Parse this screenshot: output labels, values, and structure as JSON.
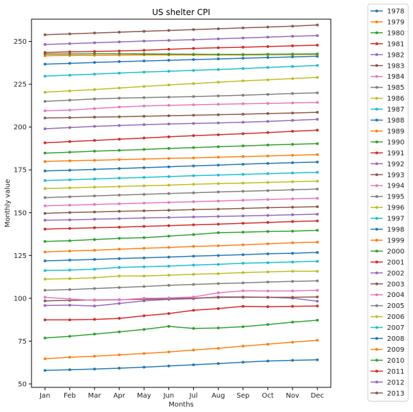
{
  "chart_data": {
    "type": "line",
    "title": "US shelter CPI",
    "xlabel": "Months",
    "ylabel": "Monthly value",
    "categories": [
      "Jan",
      "Feb",
      "Mar",
      "Apr",
      "May",
      "Jun",
      "Jul",
      "Aug",
      "Sep",
      "Oct",
      "Nov",
      "Dec"
    ],
    "ylim": [
      48,
      263
    ],
    "yticks": [
      50,
      75,
      100,
      125,
      150,
      175,
      200,
      225,
      250
    ],
    "grid": false,
    "legend": "outside right",
    "series": [
      {
        "name": "1978",
        "color": "#1f77b4",
        "values": [
          57.9,
          58.3,
          58.7,
          59.2,
          59.8,
          60.5,
          61.2,
          61.9,
          62.7,
          63.4,
          63.8,
          64.1
        ]
      },
      {
        "name": "1979",
        "color": "#ff7f0e",
        "values": [
          64.7,
          65.6,
          66.2,
          67.0,
          67.8,
          68.7,
          69.8,
          70.8,
          72.1,
          73.2,
          74.4,
          75.5
        ]
      },
      {
        "name": "1980",
        "color": "#2ca02c",
        "values": [
          76.8,
          77.8,
          79.1,
          80.4,
          81.8,
          83.6,
          82.4,
          82.7,
          83.4,
          84.7,
          86.1,
          87.2
        ]
      },
      {
        "name": "1981",
        "color": "#d62728",
        "values": [
          87.4,
          87.4,
          87.7,
          88.3,
          89.8,
          91.1,
          93.0,
          94.0,
          95.3,
          95.1,
          95.3,
          95.5
        ]
      },
      {
        "name": "1982",
        "color": "#9467bd",
        "values": [
          95.8,
          96.0,
          95.5,
          97.0,
          98.5,
          99.4,
          99.8,
          100.8,
          100.8,
          100.6,
          100.1,
          98.3
        ]
      },
      {
        "name": "1983",
        "color": "#8c564b",
        "values": [
          98.5,
          98.8,
          99.0,
          99.2,
          99.4,
          99.7,
          100.1,
          100.5,
          100.6,
          100.6,
          100.6,
          100.8
        ]
      },
      {
        "name": "1984",
        "color": "#e377c2",
        "values": [
          100.6,
          99.6,
          98.8,
          99.1,
          100.0,
          100.2,
          100.8,
          103.2,
          104.4,
          104.3,
          104.3,
          104.7
        ]
      },
      {
        "name": "1985",
        "color": "#7f7f7f",
        "values": [
          104.7,
          105.1,
          105.7,
          106.3,
          106.9,
          107.6,
          108.1,
          108.6,
          109.0,
          109.5,
          109.9,
          110.2
        ]
      },
      {
        "name": "1986",
        "color": "#bcbd22",
        "values": [
          111.2,
          111.5,
          112.0,
          113.0,
          113.0,
          113.5,
          114.0,
          114.4,
          115.0,
          115.4,
          115.8,
          115.8
        ]
      },
      {
        "name": "1987",
        "color": "#17becf",
        "values": [
          116.2,
          116.5,
          117.0,
          118.0,
          118.4,
          118.8,
          119.4,
          119.8,
          120.5,
          120.8,
          121.2,
          121.6
        ]
      },
      {
        "name": "1988",
        "color": "#1f77b4",
        "values": [
          121.9,
          122.3,
          122.7,
          123.2,
          123.6,
          124.1,
          124.6,
          125.0,
          125.5,
          126.0,
          126.3,
          126.8
        ]
      },
      {
        "name": "1989",
        "color": "#ff7f0e",
        "values": [
          127.1,
          127.6,
          128.1,
          128.7,
          129.2,
          129.7,
          130.3,
          130.7,
          131.2,
          131.8,
          132.4,
          132.8
        ]
      },
      {
        "name": "1990",
        "color": "#2ca02c",
        "values": [
          133.2,
          133.6,
          134.3,
          135.0,
          135.4,
          136.3,
          137.2,
          138.3,
          138.6,
          139.0,
          139.2,
          139.7
        ]
      },
      {
        "name": "1991",
        "color": "#d62728",
        "values": [
          140.4,
          140.8,
          141.2,
          141.5,
          142.0,
          142.4,
          142.9,
          143.3,
          143.8,
          144.3,
          144.8,
          145.2
        ]
      },
      {
        "name": "1992",
        "color": "#9467bd",
        "values": [
          145.6,
          145.8,
          146.2,
          146.5,
          146.9,
          147.2,
          147.5,
          147.8,
          148.1,
          148.4,
          148.8,
          149.1
        ]
      },
      {
        "name": "1993",
        "color": "#8c564b",
        "values": [
          149.6,
          150.1,
          150.4,
          150.8,
          151.1,
          151.4,
          151.8,
          152.1,
          152.5,
          152.9,
          153.2,
          153.5
        ]
      },
      {
        "name": "1994",
        "color": "#e377c2",
        "values": [
          154.0,
          154.4,
          154.8,
          155.2,
          155.6,
          156.0,
          156.4,
          156.8,
          157.3,
          157.7,
          158.1,
          158.4
        ]
      },
      {
        "name": "1995",
        "color": "#7f7f7f",
        "values": [
          158.8,
          159.3,
          159.8,
          160.3,
          160.7,
          161.2,
          161.6,
          162.1,
          162.5,
          162.9,
          163.4,
          163.8
        ]
      },
      {
        "name": "1996",
        "color": "#bcbd22",
        "values": [
          164.1,
          164.5,
          164.9,
          165.3,
          165.7,
          166.1,
          166.6,
          167.0,
          167.3,
          167.7,
          168.1,
          168.4
        ]
      },
      {
        "name": "1997",
        "color": "#17becf",
        "values": [
          168.8,
          169.2,
          169.7,
          170.2,
          170.6,
          171.1,
          171.6,
          172.0,
          172.4,
          172.8,
          173.2,
          173.6
        ]
      },
      {
        "name": "1998",
        "color": "#1f77b4",
        "values": [
          174.4,
          174.8,
          175.3,
          175.8,
          176.3,
          176.8,
          177.3,
          177.8,
          178.3,
          178.8,
          179.2,
          179.6
        ]
      },
      {
        "name": "1999",
        "color": "#ff7f0e",
        "values": [
          179.9,
          180.3,
          180.6,
          181.0,
          181.3,
          181.7,
          182.0,
          182.4,
          182.8,
          183.1,
          183.5,
          183.9
        ]
      },
      {
        "name": "2000",
        "color": "#2ca02c",
        "values": [
          184.8,
          185.3,
          185.9,
          186.4,
          186.9,
          187.5,
          188.0,
          188.5,
          189.0,
          189.5,
          189.9,
          190.3
        ]
      },
      {
        "name": "2001",
        "color": "#d62728",
        "values": [
          190.8,
          191.5,
          192.2,
          192.9,
          193.6,
          194.3,
          195.0,
          195.5,
          196.1,
          196.8,
          197.5,
          198.2
        ]
      },
      {
        "name": "2002",
        "color": "#9467bd",
        "values": [
          199.0,
          199.7,
          200.4,
          200.9,
          201.4,
          201.8,
          202.1,
          202.4,
          202.8,
          203.3,
          203.9,
          204.5
        ]
      },
      {
        "name": "2003",
        "color": "#8c564b",
        "values": [
          205.3,
          205.5,
          205.8,
          206.0,
          206.3,
          206.6,
          206.9,
          207.2,
          207.5,
          207.9,
          208.2,
          208.6
        ]
      },
      {
        "name": "2004",
        "color": "#e377c2",
        "values": [
          209.5,
          209.9,
          210.8,
          211.7,
          212.3,
          212.7,
          213.0,
          213.3,
          213.6,
          213.8,
          214.1,
          214.4
        ]
      },
      {
        "name": "2005",
        "color": "#7f7f7f",
        "values": [
          215.0,
          215.7,
          216.4,
          216.9,
          217.2,
          217.5,
          217.8,
          218.2,
          218.6,
          219.1,
          219.6,
          220.0
        ]
      },
      {
        "name": "2006",
        "color": "#bcbd22",
        "values": [
          220.3,
          221.1,
          221.9,
          222.8,
          223.7,
          224.6,
          225.4,
          226.2,
          227.0,
          227.6,
          228.3,
          229.0
        ]
      },
      {
        "name": "2007",
        "color": "#17becf",
        "values": [
          229.7,
          230.3,
          230.9,
          231.5,
          232.1,
          232.6,
          233.1,
          233.6,
          234.2,
          234.8,
          235.4,
          236.0
        ]
      },
      {
        "name": "2008",
        "color": "#1f77b4",
        "values": [
          236.7,
          237.2,
          237.7,
          238.2,
          238.6,
          239.0,
          239.4,
          239.8,
          240.2,
          240.6,
          241.0,
          241.3
        ]
      },
      {
        "name": "2009",
        "color": "#ff7f0e",
        "values": [
          241.6,
          241.8,
          241.9,
          242.0,
          242.1,
          242.1,
          242.1,
          242.1,
          242.1,
          242.2,
          242.3,
          242.4
        ]
      },
      {
        "name": "2010",
        "color": "#2ca02c",
        "values": [
          242.6,
          242.7,
          242.8,
          242.8,
          242.7,
          242.6,
          242.5,
          242.4,
          242.4,
          242.5,
          242.6,
          242.7
        ]
      },
      {
        "name": "2011",
        "color": "#d62728",
        "values": [
          243.5,
          243.9,
          244.1,
          244.4,
          244.8,
          245.4,
          245.9,
          246.3,
          246.6,
          247.0,
          247.4,
          247.8
        ]
      },
      {
        "name": "2012",
        "color": "#9467bd",
        "values": [
          248.2,
          248.7,
          249.2,
          249.7,
          250.2,
          250.6,
          251.0,
          251.5,
          252.0,
          252.5,
          253.0,
          253.4
        ]
      },
      {
        "name": "2013",
        "color": "#8c564b",
        "values": [
          253.9,
          254.4,
          254.9,
          255.4,
          255.9,
          256.4,
          256.9,
          257.4,
          257.9,
          258.4,
          258.9,
          259.6
        ]
      }
    ]
  }
}
